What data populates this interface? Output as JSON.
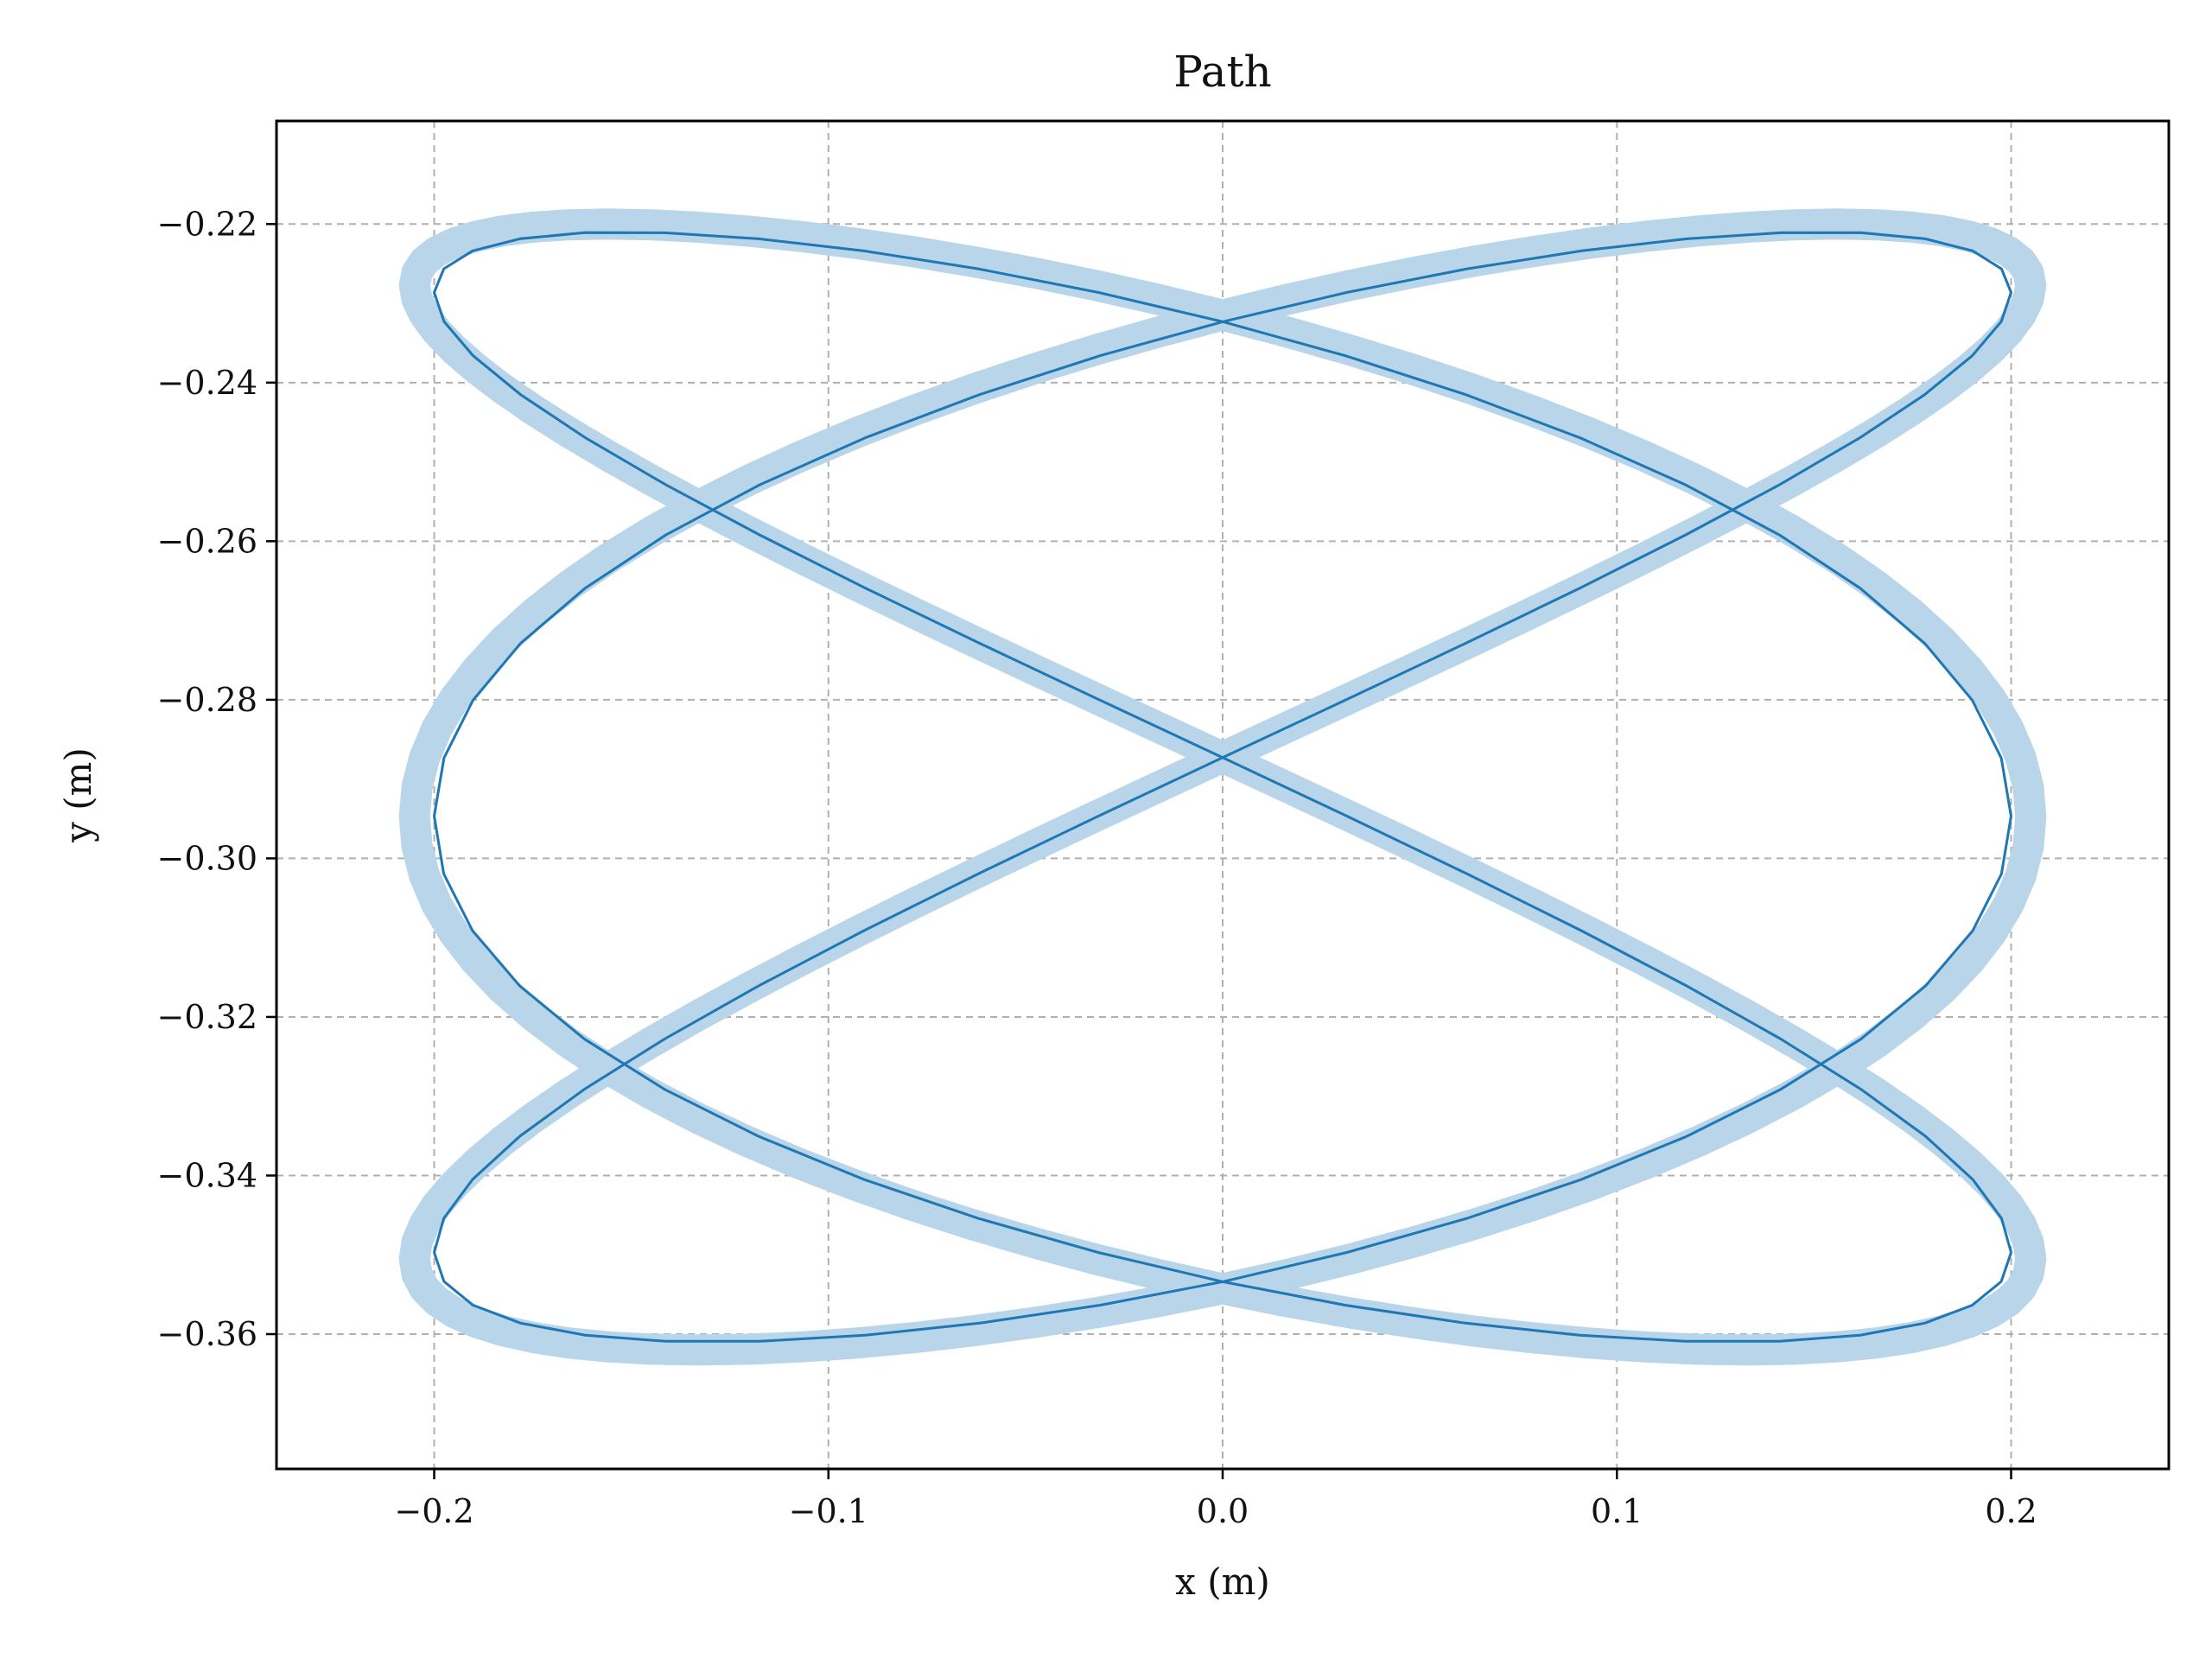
{
  "chart_data": {
    "type": "line",
    "title": "Path",
    "xlabel": "x (m)",
    "ylabel": "y (m)",
    "xlim": [
      -0.24,
      0.24
    ],
    "ylim": [
      -0.377,
      -0.207
    ],
    "x_ticks": [
      -0.2,
      -0.1,
      0.0,
      0.1,
      0.2
    ],
    "x_tick_labels": [
      "−0.2",
      "−0.1",
      "0.0",
      "0.1",
      "0.2"
    ],
    "y_ticks": [
      -0.36,
      -0.34,
      -0.32,
      -0.3,
      -0.28,
      -0.26,
      -0.24,
      -0.22
    ],
    "y_tick_labels": [
      "−0.36",
      "−0.34",
      "−0.32",
      "−0.30",
      "−0.28",
      "−0.26",
      "−0.24",
      "−0.22"
    ],
    "grid": true,
    "legend": "none",
    "colors": {
      "line": "#1f77b4",
      "band": "#b9d5ea",
      "grid": "#b0b0b0",
      "axes": "#000000"
    },
    "series": [
      {
        "style": "thick-translucent-band",
        "param": {
          "amp_x": 0.205,
          "freq_x": 3.0,
          "phase_x": 4.712,
          "center_x": 0.0,
          "amp_y": 0.071,
          "freq_y": 2.0,
          "phase_y": 1.1,
          "center_y": -0.291,
          "t_start": 0.0,
          "t_end": 12.566,
          "n_points": 480
        }
      },
      {
        "style": "thin-line",
        "param": {
          "amp_x": 0.2,
          "freq_x": 3.0,
          "phase_x": 4.712,
          "center_x": 0.0,
          "amp_y": 0.07,
          "freq_y": 2.0,
          "phase_y": 1.1,
          "center_y": -0.291,
          "t_start": 0.0,
          "t_end": 12.566,
          "n_points": 240
        }
      }
    ]
  }
}
